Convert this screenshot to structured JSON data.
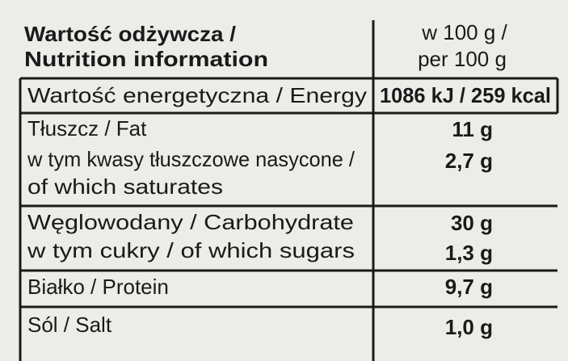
{
  "header": {
    "left": [
      "Wartość odżywcza /",
      "Nutrition information"
    ],
    "right": [
      "w 100 g /",
      "per 100 g"
    ]
  },
  "rows": [
    {
      "labels": [
        "Wartość energetyczna / Energy"
      ],
      "values": [
        "1086 kJ / 259 kcal"
      ]
    },
    {
      "labels": [
        "Tłuszcz / Fat",
        "w tym kwasy tłuszczowe nasycone /",
        "of which saturates"
      ],
      "values": [
        "11 g",
        "2,7 g"
      ]
    },
    {
      "labels": [
        "Węglowodany / Carbohydrate",
        "w tym cukry / of which sugars"
      ],
      "values": [
        "30 g",
        "1,3 g"
      ]
    },
    {
      "labels": [
        "Białko / Protein"
      ],
      "values": [
        "9,7 g"
      ]
    },
    {
      "labels": [
        "Sól / Salt"
      ],
      "values": [
        "1,0 g"
      ]
    }
  ]
}
